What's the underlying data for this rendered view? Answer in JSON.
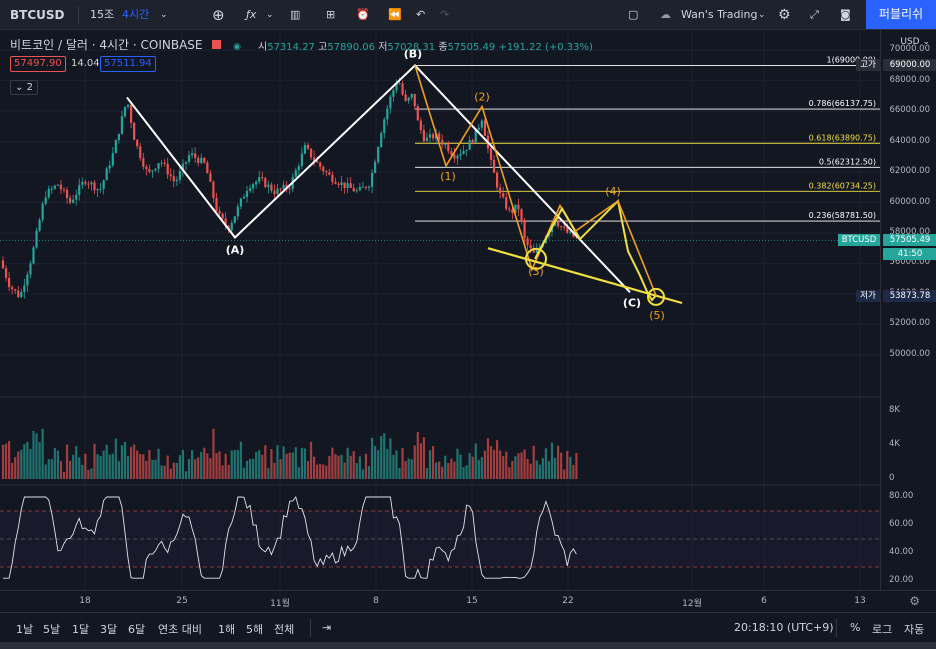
{
  "toolbar": {
    "symbol": "BTCUSD",
    "interval_minutes": "15조",
    "interval_hours": "4시간",
    "layout_name": "Wan's Trading",
    "publish_label": "퍼블리쉬"
  },
  "legend": {
    "title": "비트코인 / 달러 · 4시간 · COINBASE",
    "open_label": "시",
    "open": "57314.27",
    "high_label": "고",
    "high": "57890.06",
    "low_label": "저",
    "low": "57028.31",
    "close_label": "종",
    "close": "57505.49",
    "change": "+191.22 (+0.33%)",
    "bid": "57497.90",
    "spread": "14.04",
    "ask": "57511.94",
    "indicator_count": "2"
  },
  "price_axis": {
    "currency": "USD",
    "labels": [
      "70000.00",
      "68000.00",
      "66000.00",
      "64000.00",
      "62000.00",
      "60000.00",
      "58000.00",
      "56000.00",
      "54000.00",
      "52000.00",
      "50000.00"
    ],
    "high_tag_label": "고가",
    "high_tag": "69000.00",
    "symbol_tag": "BTCUSD",
    "symbol_price": "57505.49",
    "countdown": "41:50",
    "low_tag_label": "저가",
    "low_tag": "53873.78"
  },
  "volume_axis": {
    "labels": [
      "8K",
      "4K",
      "0"
    ]
  },
  "rsi_axis": {
    "labels": [
      "80.00",
      "60.00",
      "40.00",
      "20.00"
    ]
  },
  "time_axis": {
    "labels": [
      "18",
      "25",
      "11월",
      "8",
      "15",
      "22",
      "12월",
      "6",
      "13"
    ]
  },
  "bottom_bar": {
    "ranges": [
      "1날",
      "5날",
      "1달",
      "3달",
      "6달",
      "연초 대비",
      "1해",
      "5해",
      "전체"
    ],
    "clock": "20:18:10 (UTC+9)",
    "percent": "%",
    "log": "로그",
    "auto": "자동"
  },
  "fib_levels": [
    {
      "label": "1(69000.00)",
      "price": 69000,
      "color": "#ffffff"
    },
    {
      "label": "0.786(66137.75)",
      "price": 66137.75,
      "color": "#ffffff"
    },
    {
      "label": "0.618(63890.75)",
      "price": 63890.75,
      "color": "#f0e040"
    },
    {
      "label": "0.5(62312.50)",
      "price": 62312.5,
      "color": "#ffffff"
    },
    {
      "label": "0.382(60734.25)",
      "price": 60734.25,
      "color": "#f0e040"
    },
    {
      "label": "0.236(58781.50)",
      "price": 58781.5,
      "color": "#ffffff"
    }
  ],
  "wave_labels": {
    "A": "(A)",
    "B": "(B)",
    "C": "(C)",
    "w1": "(1)",
    "w2": "(2)",
    "w3": "(3)",
    "w4": "(4)",
    "w5": "(5)"
  },
  "chart_data": {
    "type": "candlestick",
    "title": "비트코인 / 달러 · 4시간 · COINBASE",
    "ylim": [
      49000,
      71000
    ],
    "x_ticks": [
      "18",
      "25",
      "11월",
      "8",
      "15",
      "22",
      "12월",
      "6",
      "13"
    ],
    "close_path": [
      [
        0,
        56200
      ],
      [
        10,
        54500
      ],
      [
        20,
        53800
      ],
      [
        32,
        56500
      ],
      [
        45,
        60500
      ],
      [
        58,
        61200
      ],
      [
        70,
        60000
      ],
      [
        85,
        61500
      ],
      [
        100,
        60800
      ],
      [
        113,
        63200
      ],
      [
        120,
        65000
      ],
      [
        127,
        66800
      ],
      [
        135,
        64000
      ],
      [
        148,
        61800
      ],
      [
        160,
        62800
      ],
      [
        175,
        61300
      ],
      [
        190,
        63200
      ],
      [
        205,
        62500
      ],
      [
        218,
        59200
      ],
      [
        228,
        58300
      ],
      [
        235,
        59200
      ],
      [
        248,
        61100
      ],
      [
        260,
        61500
      ],
      [
        275,
        60700
      ],
      [
        290,
        61100
      ],
      [
        305,
        63600
      ],
      [
        318,
        62500
      ],
      [
        330,
        61700
      ],
      [
        345,
        61100
      ],
      [
        358,
        60700
      ],
      [
        370,
        61300
      ],
      [
        382,
        65000
      ],
      [
        390,
        66800
      ],
      [
        398,
        68200
      ],
      [
        405,
        66500
      ],
      [
        413,
        67100
      ],
      [
        418,
        65200
      ],
      [
        425,
        64100
      ],
      [
        435,
        64400
      ],
      [
        445,
        63800
      ],
      [
        455,
        63100
      ],
      [
        465,
        63500
      ],
      [
        475,
        64400
      ],
      [
        482,
        65600
      ],
      [
        490,
        62800
      ],
      [
        500,
        60500
      ],
      [
        510,
        59300
      ],
      [
        518,
        59800
      ],
      [
        525,
        57400
      ],
      [
        535,
        56500
      ],
      [
        545,
        57800
      ],
      [
        555,
        58900
      ],
      [
        565,
        58100
      ],
      [
        575,
        57700
      ],
      [
        579,
        57505
      ]
    ],
    "volume": {
      "ylim": [
        0,
        9000
      ]
    },
    "rsi": {
      "ylim": [
        15,
        85
      ],
      "bands": [
        70,
        50,
        30
      ]
    }
  },
  "colors": {
    "up": "#26a69a",
    "down": "#ef5350",
    "accent": "#2962ff",
    "wave_orange": "#f0a020",
    "wave_yellow": "#f0e040",
    "fib": "#ffffff",
    "rsi": "#e0e3eb"
  }
}
